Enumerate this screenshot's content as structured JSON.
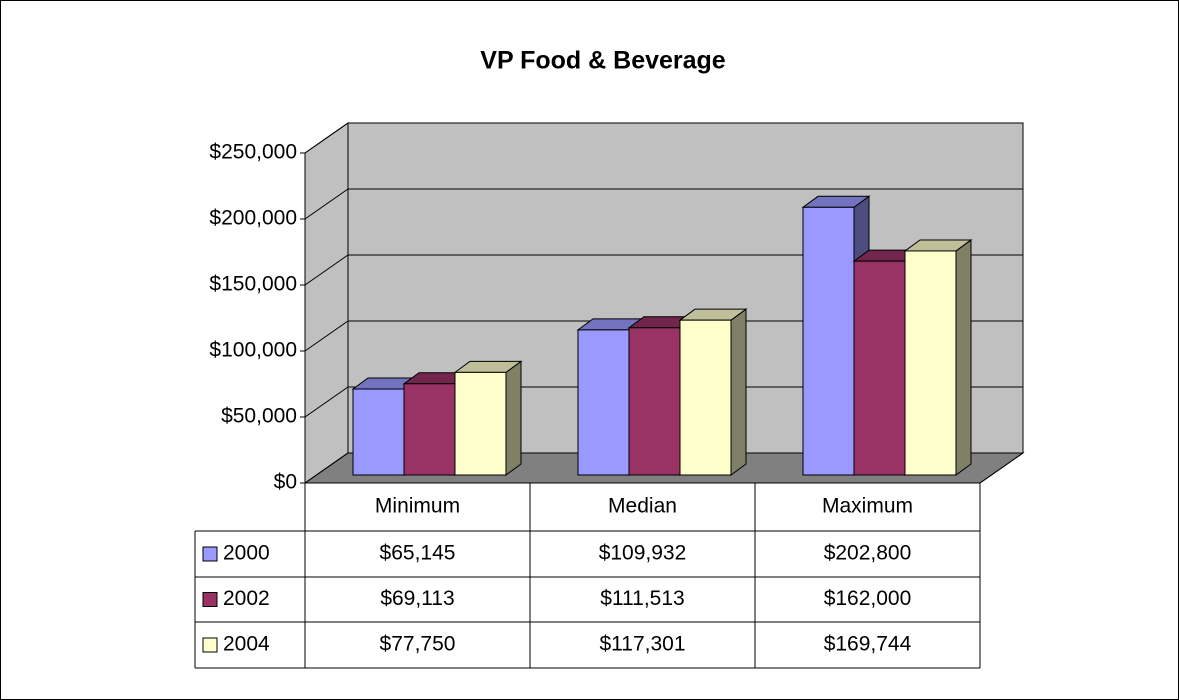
{
  "chart_data": {
    "type": "bar3d",
    "title": "VP Food & Beverage",
    "categories": [
      "Minimum",
      "Median",
      "Maximum"
    ],
    "series": [
      {
        "name": "2000",
        "color": "#9999ff",
        "values": [
          65145,
          109932,
          202800
        ],
        "value_labels": [
          "$65,145",
          "$109,932",
          "$202,800"
        ]
      },
      {
        "name": "2002",
        "color": "#993366",
        "values": [
          69113,
          111513,
          162000
        ],
        "value_labels": [
          "$69,113",
          "$111,513",
          "$162,000"
        ]
      },
      {
        "name": "2004",
        "color": "#ffffcc",
        "values": [
          77750,
          117301,
          169744
        ],
        "value_labels": [
          "$77,750",
          "$117,301",
          "$169,744"
        ]
      }
    ],
    "ylim": [
      0,
      250000
    ],
    "yticks": [
      {
        "value": 0,
        "label": "$0"
      },
      {
        "value": 50000,
        "label": "$50,000"
      },
      {
        "value": 100000,
        "label": "$100,000"
      },
      {
        "value": 150000,
        "label": "$150,000"
      },
      {
        "value": 200000,
        "label": "$200,000"
      },
      {
        "value": 250000,
        "label": "$250,000"
      }
    ],
    "grid": true,
    "data_table": true
  }
}
